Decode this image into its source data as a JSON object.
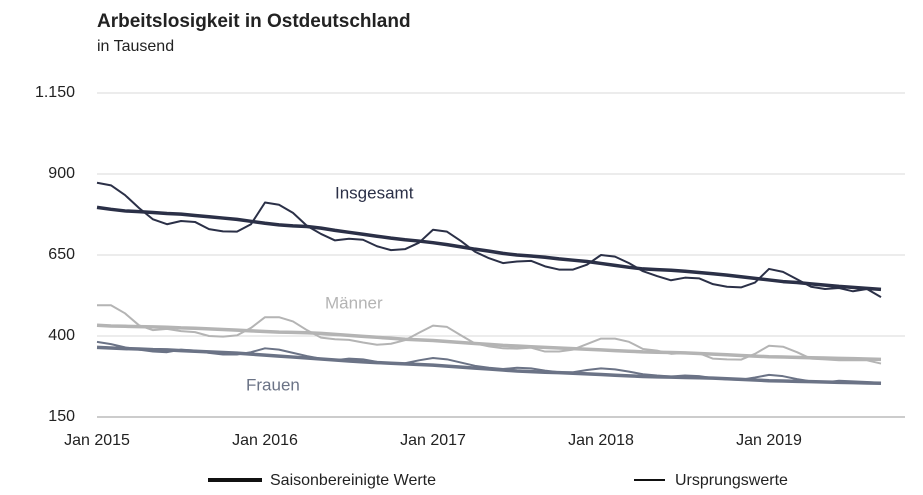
{
  "chart_data": {
    "type": "line",
    "title": "Arbeitslosigkeit in Ostdeutschland",
    "subtitle": "in Tausend",
    "categories": [
      "Jan 2015",
      null,
      null,
      null,
      null,
      null,
      null,
      null,
      null,
      null,
      null,
      null,
      "Jan 2016",
      null,
      null,
      null,
      null,
      null,
      null,
      null,
      null,
      null,
      null,
      null,
      "Jan 2017",
      null,
      null,
      null,
      null,
      null,
      null,
      null,
      null,
      null,
      null,
      null,
      "Jan 2018",
      null,
      null,
      null,
      null,
      null,
      null,
      null,
      null,
      null,
      null,
      null,
      "Jan 2019",
      null,
      null,
      null,
      null,
      null,
      null,
      null,
      null
    ],
    "ylim": [
      150,
      1150
    ],
    "yticks": [
      150,
      400,
      650,
      900,
      {
        "value": 1150,
        "label": "1.150"
      }
    ],
    "grid": true,
    "legend": [
      "Saisonbereinigte Werte",
      "Ursprungswerte"
    ],
    "groups": [
      {
        "label": "Insgesamt",
        "color": "#2b3047",
        "seasonally_adjusted": [
          797,
          791,
          786,
          784,
          781,
          778,
          776,
          772,
          768,
          764,
          760,
          754,
          748,
          743,
          740,
          738,
          733,
          726,
          720,
          714,
          708,
          702,
          697,
          693,
          688,
          682,
          675,
          668,
          662,
          655,
          650,
          647,
          643,
          638,
          634,
          630,
          624,
          618,
          612,
          607,
          605,
          603,
          600,
          596,
          592,
          588,
          583,
          578,
          573,
          568,
          565,
          561,
          557,
          553,
          550,
          547,
          544
        ],
        "original": [
          873,
          865,
          835,
          795,
          760,
          745,
          755,
          752,
          730,
          723,
          722,
          745,
          812,
          805,
          780,
          740,
          715,
          695,
          700,
          697,
          677,
          665,
          668,
          688,
          728,
          722,
          693,
          660,
          640,
          625,
          630,
          632,
          615,
          605,
          605,
          620,
          650,
          645,
          625,
          600,
          585,
          572,
          580,
          578,
          560,
          552,
          550,
          565,
          607,
          598,
          575,
          552,
          545,
          548,
          538,
          545,
          520
        ]
      },
      {
        "label": "Männer",
        "color": "#b4b4b4",
        "seasonally_adjusted": [
          433,
          431,
          430,
          429,
          428,
          427,
          425,
          424,
          422,
          420,
          418,
          416,
          414,
          412,
          411,
          410,
          408,
          405,
          402,
          399,
          396,
          393,
          390,
          388,
          386,
          383,
          380,
          377,
          374,
          371,
          369,
          367,
          365,
          363,
          361,
          359,
          357,
          355,
          353,
          351,
          350,
          349,
          348,
          346,
          344,
          342,
          340,
          338,
          336,
          335,
          334,
          333,
          332,
          331,
          330,
          329,
          328
        ],
        "original": [
          495,
          495,
          470,
          433,
          418,
          422,
          415,
          412,
          400,
          398,
          402,
          425,
          458,
          458,
          445,
          418,
          395,
          390,
          388,
          380,
          373,
          376,
          387,
          410,
          432,
          428,
          402,
          377,
          368,
          362,
          361,
          364,
          352,
          352,
          358,
          375,
          392,
          392,
          382,
          360,
          355,
          345,
          348,
          347,
          330,
          328,
          327,
          345,
          370,
          367,
          350,
          330,
          328,
          325,
          325,
          325,
          315
        ]
      },
      {
        "label": "Frauen",
        "color": "#6b7386",
        "seasonally_adjusted": [
          365,
          363,
          361,
          360,
          358,
          357,
          355,
          353,
          351,
          349,
          347,
          344,
          341,
          338,
          335,
          332,
          329,
          326,
          323,
          320,
          318,
          316,
          314,
          312,
          310,
          307,
          304,
          301,
          298,
          295,
          292,
          290,
          288,
          287,
          285,
          283,
          281,
          279,
          277,
          275,
          274,
          273,
          272,
          271,
          270,
          268,
          266,
          264,
          262,
          261,
          260,
          259,
          258,
          257,
          256,
          255,
          254
        ],
        "original": [
          382,
          375,
          365,
          358,
          352,
          350,
          358,
          355,
          348,
          343,
          343,
          350,
          362,
          358,
          348,
          338,
          330,
          325,
          330,
          328,
          320,
          315,
          316,
          325,
          332,
          328,
          318,
          308,
          302,
          298,
          302,
          300,
          293,
          288,
          288,
          295,
          300,
          297,
          290,
          282,
          278,
          275,
          278,
          276,
          270,
          266,
          265,
          272,
          280,
          276,
          267,
          260,
          257,
          262,
          260,
          258,
          255
        ]
      }
    ]
  }
}
